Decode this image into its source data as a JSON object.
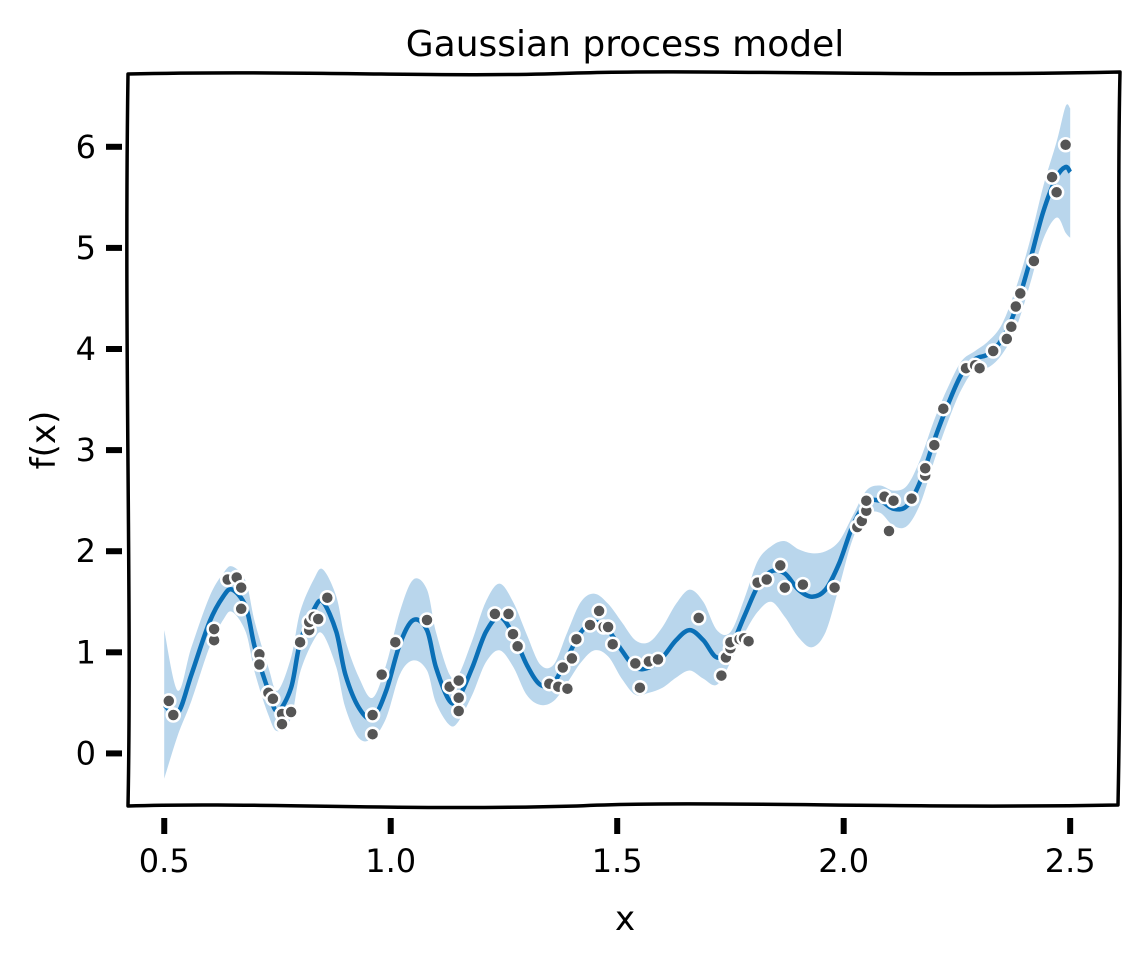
{
  "chart_data": {
    "type": "line",
    "title": "Gaussian process model",
    "xlabel": "x",
    "ylabel": "f(x)",
    "xlim": [
      0.42,
      2.61
    ],
    "ylim": [
      -0.52,
      6.72
    ],
    "x_ticks": [
      0.5,
      1.0,
      1.5,
      2.0,
      2.5
    ],
    "x_tick_labels": [
      "0.5",
      "1.0",
      "1.5",
      "2.0",
      "2.5"
    ],
    "y_ticks": [
      0,
      1,
      2,
      3,
      4,
      5,
      6
    ],
    "y_tick_labels": [
      "0",
      "1",
      "2",
      "3",
      "4",
      "5",
      "6"
    ],
    "grid": false,
    "colors": {
      "mean": "#0a6fb6",
      "band": "#b9d6ec",
      "points": "#555555",
      "point_edge": "#ffffff"
    },
    "series": [
      {
        "kind": "mean",
        "x": [
          0.5,
          0.53,
          0.56,
          0.6,
          0.63,
          0.65,
          0.68,
          0.7,
          0.73,
          0.75,
          0.78,
          0.8,
          0.83,
          0.85,
          0.88,
          0.9,
          0.93,
          0.96,
          0.99,
          1.02,
          1.05,
          1.08,
          1.1,
          1.13,
          1.15,
          1.18,
          1.21,
          1.24,
          1.27,
          1.3,
          1.33,
          1.36,
          1.39,
          1.42,
          1.45,
          1.48,
          1.51,
          1.54,
          1.57,
          1.6,
          1.63,
          1.66,
          1.69,
          1.72,
          1.75,
          1.78,
          1.81,
          1.84,
          1.87,
          1.9,
          1.93,
          1.96,
          1.99,
          2.02,
          2.05,
          2.08,
          2.11,
          2.14,
          2.17,
          2.2,
          2.23,
          2.26,
          2.29,
          2.32,
          2.35,
          2.38,
          2.41,
          2.44,
          2.47,
          2.49,
          2.5
        ],
        "y": [
          0.48,
          0.4,
          0.78,
          1.3,
          1.55,
          1.62,
          1.45,
          1.05,
          0.62,
          0.42,
          0.65,
          1.1,
          1.42,
          1.5,
          1.2,
          0.78,
          0.45,
          0.35,
          0.62,
          1.08,
          1.32,
          1.22,
          0.85,
          0.52,
          0.55,
          0.85,
          1.2,
          1.35,
          1.18,
          0.88,
          0.68,
          0.7,
          0.95,
          1.2,
          1.3,
          1.22,
          1.02,
          0.85,
          0.85,
          0.95,
          1.12,
          1.22,
          1.12,
          0.95,
          1.05,
          1.35,
          1.65,
          1.8,
          1.78,
          1.62,
          1.55,
          1.62,
          1.88,
          2.25,
          2.48,
          2.5,
          2.42,
          2.45,
          2.7,
          3.1,
          3.45,
          3.75,
          3.9,
          3.95,
          4.1,
          4.4,
          4.85,
          5.35,
          5.7,
          5.8,
          5.75
        ]
      },
      {
        "kind": "confidence-band",
        "x": [
          0.5,
          0.53,
          0.56,
          0.6,
          0.63,
          0.65,
          0.68,
          0.7,
          0.73,
          0.75,
          0.78,
          0.8,
          0.83,
          0.85,
          0.88,
          0.9,
          0.93,
          0.96,
          0.99,
          1.02,
          1.05,
          1.08,
          1.1,
          1.13,
          1.15,
          1.18,
          1.21,
          1.24,
          1.27,
          1.3,
          1.33,
          1.36,
          1.39,
          1.42,
          1.45,
          1.48,
          1.51,
          1.54,
          1.57,
          1.6,
          1.63,
          1.66,
          1.69,
          1.72,
          1.75,
          1.78,
          1.81,
          1.84,
          1.87,
          1.9,
          1.93,
          1.96,
          1.99,
          2.02,
          2.05,
          2.08,
          2.11,
          2.14,
          2.17,
          2.2,
          2.23,
          2.26,
          2.29,
          2.32,
          2.35,
          2.38,
          2.41,
          2.44,
          2.47,
          2.49,
          2.5
        ],
        "upper": [
          1.22,
          0.62,
          1.05,
          1.55,
          1.78,
          1.85,
          1.7,
          1.3,
          0.85,
          0.62,
          0.95,
          1.4,
          1.72,
          1.82,
          1.55,
          1.12,
          0.75,
          0.55,
          0.88,
          1.4,
          1.72,
          1.62,
          1.2,
          0.78,
          0.78,
          1.12,
          1.5,
          1.68,
          1.5,
          1.18,
          0.88,
          0.88,
          1.2,
          1.5,
          1.58,
          1.48,
          1.3,
          1.12,
          1.1,
          1.25,
          1.48,
          1.62,
          1.5,
          1.22,
          1.2,
          1.52,
          1.9,
          2.05,
          2.1,
          2.02,
          1.98,
          2.0,
          2.1,
          2.35,
          2.6,
          2.65,
          2.6,
          2.65,
          2.92,
          3.3,
          3.62,
          3.88,
          3.98,
          4.08,
          4.25,
          4.6,
          5.05,
          5.6,
          6.05,
          6.4,
          6.38
        ],
        "lower": [
          -0.25,
          0.18,
          0.52,
          1.05,
          1.32,
          1.4,
          1.2,
          0.8,
          0.38,
          0.22,
          0.35,
          0.8,
          1.12,
          1.18,
          0.85,
          0.45,
          0.15,
          0.15,
          0.35,
          0.78,
          0.92,
          0.82,
          0.5,
          0.28,
          0.32,
          0.58,
          0.9,
          1.02,
          0.86,
          0.58,
          0.48,
          0.52,
          0.7,
          0.9,
          1.02,
          0.96,
          0.74,
          0.58,
          0.6,
          0.65,
          0.75,
          0.82,
          0.74,
          0.68,
          0.9,
          1.18,
          1.4,
          1.5,
          1.35,
          1.15,
          1.05,
          1.2,
          1.65,
          2.12,
          2.36,
          2.38,
          2.25,
          2.25,
          2.48,
          2.9,
          3.28,
          3.6,
          3.8,
          3.82,
          3.95,
          4.2,
          4.62,
          5.08,
          5.3,
          5.15,
          5.1
        ]
      },
      {
        "kind": "observations",
        "points": [
          [
            0.51,
            0.52
          ],
          [
            0.52,
            0.38
          ],
          [
            0.61,
            1.12
          ],
          [
            0.61,
            1.23
          ],
          [
            0.64,
            1.72
          ],
          [
            0.66,
            1.74
          ],
          [
            0.67,
            1.64
          ],
          [
            0.67,
            1.43
          ],
          [
            0.71,
            0.98
          ],
          [
            0.71,
            0.88
          ],
          [
            0.73,
            0.6
          ],
          [
            0.74,
            0.54
          ],
          [
            0.76,
            0.39
          ],
          [
            0.76,
            0.29
          ],
          [
            0.78,
            0.41
          ],
          [
            0.8,
            1.1
          ],
          [
            0.82,
            1.22
          ],
          [
            0.82,
            1.3
          ],
          [
            0.83,
            1.35
          ],
          [
            0.84,
            1.33
          ],
          [
            0.86,
            1.54
          ],
          [
            0.96,
            0.19
          ],
          [
            0.96,
            0.38
          ],
          [
            0.98,
            0.78
          ],
          [
            1.01,
            1.1
          ],
          [
            1.08,
            1.32
          ],
          [
            1.13,
            0.66
          ],
          [
            1.15,
            0.42
          ],
          [
            1.15,
            0.55
          ],
          [
            1.15,
            0.72
          ],
          [
            1.23,
            1.38
          ],
          [
            1.26,
            1.38
          ],
          [
            1.27,
            1.18
          ],
          [
            1.28,
            1.06
          ],
          [
            1.35,
            0.69
          ],
          [
            1.37,
            0.66
          ],
          [
            1.38,
            0.85
          ],
          [
            1.39,
            0.64
          ],
          [
            1.4,
            0.94
          ],
          [
            1.41,
            1.13
          ],
          [
            1.44,
            1.27
          ],
          [
            1.46,
            1.41
          ],
          [
            1.47,
            1.25
          ],
          [
            1.48,
            1.25
          ],
          [
            1.49,
            1.08
          ],
          [
            1.54,
            0.89
          ],
          [
            1.55,
            0.65
          ],
          [
            1.57,
            0.91
          ],
          [
            1.59,
            0.93
          ],
          [
            1.68,
            1.34
          ],
          [
            1.73,
            0.77
          ],
          [
            1.74,
            0.95
          ],
          [
            1.75,
            1.04
          ],
          [
            1.75,
            1.1
          ],
          [
            1.77,
            1.13
          ],
          [
            1.78,
            1.14
          ],
          [
            1.79,
            1.11
          ],
          [
            1.81,
            1.69
          ],
          [
            1.83,
            1.72
          ],
          [
            1.86,
            1.86
          ],
          [
            1.87,
            1.64
          ],
          [
            1.91,
            1.67
          ],
          [
            1.98,
            1.64
          ],
          [
            2.03,
            2.24
          ],
          [
            2.04,
            2.3
          ],
          [
            2.05,
            2.4
          ],
          [
            2.05,
            2.5
          ],
          [
            2.09,
            2.54
          ],
          [
            2.1,
            2.2
          ],
          [
            2.11,
            2.5
          ],
          [
            2.15,
            2.52
          ],
          [
            2.18,
            2.75
          ],
          [
            2.18,
            2.82
          ],
          [
            2.2,
            3.05
          ],
          [
            2.22,
            3.41
          ],
          [
            2.27,
            3.81
          ],
          [
            2.29,
            3.84
          ],
          [
            2.3,
            3.81
          ],
          [
            2.33,
            3.98
          ],
          [
            2.36,
            4.1
          ],
          [
            2.37,
            4.22
          ],
          [
            2.38,
            4.42
          ],
          [
            2.39,
            4.55
          ],
          [
            2.42,
            4.87
          ],
          [
            2.46,
            5.7
          ],
          [
            2.47,
            5.55
          ],
          [
            2.49,
            6.02
          ]
        ]
      }
    ]
  }
}
